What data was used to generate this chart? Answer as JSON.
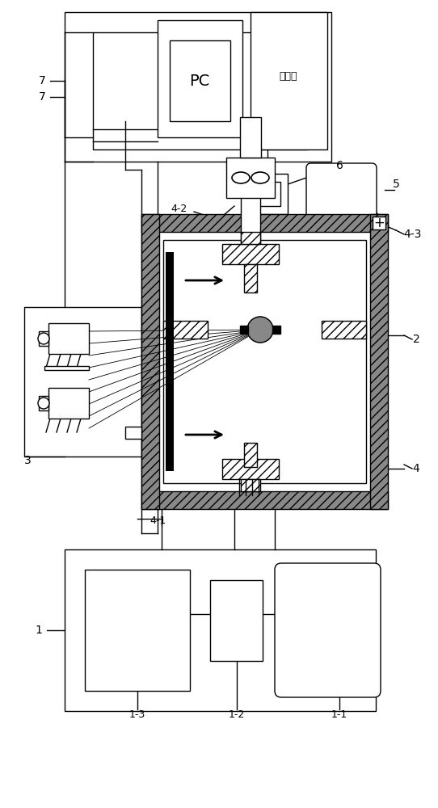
{
  "bg_color": "#ffffff",
  "lc": "#000000",
  "labels": {
    "PC": "PC",
    "controller": "控制器",
    "1": "1",
    "1-1": "1-1",
    "1-2": "1-2",
    "1-3": "1-3",
    "2": "2",
    "3": "3",
    "4": "4",
    "4-1": "4-1",
    "4-2": "4-2",
    "4-3": "4-3",
    "5": "5",
    "6": "6",
    "7": "7"
  },
  "figsize": [
    5.42,
    10.0
  ],
  "dpi": 100
}
